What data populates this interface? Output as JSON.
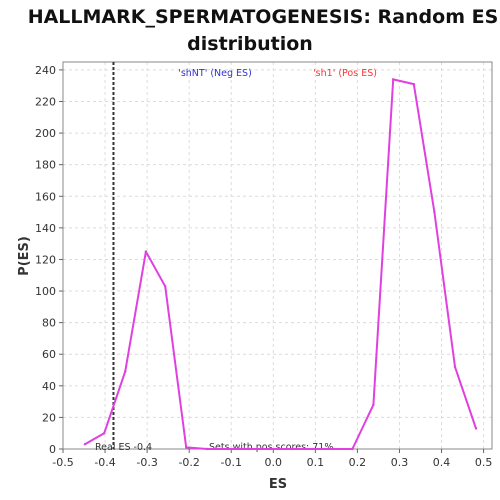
{
  "chart_data": {
    "type": "line",
    "title_lines": [
      "HALLMARK_SPERMATOGENESIS: Random ES",
      "distribution"
    ],
    "xlabel": "ES",
    "ylabel": "P(ES)",
    "xlim": [
      -0.5,
      0.52
    ],
    "ylim": [
      0,
      245
    ],
    "x_ticks": [
      "-0.5",
      "-0.4",
      "-0.3",
      "-0.2",
      "-0.1",
      "0.0",
      "0.1",
      "0.2",
      "0.3",
      "0.4",
      "0.5"
    ],
    "x_tick_values": [
      -0.5,
      -0.4,
      -0.3,
      -0.2,
      -0.1,
      0.0,
      0.1,
      0.2,
      0.3,
      0.4,
      0.5
    ],
    "y_ticks": [
      "0",
      "20",
      "40",
      "60",
      "80",
      "100",
      "120",
      "140",
      "160",
      "180",
      "200",
      "220",
      "240"
    ],
    "y_tick_values": [
      0,
      20,
      40,
      60,
      80,
      100,
      120,
      140,
      160,
      180,
      200,
      220,
      240
    ],
    "grid": true,
    "series": [
      {
        "color": "#e040e0",
        "x": [
          -0.448,
          -0.402,
          -0.352,
          -0.303,
          -0.257,
          -0.207,
          -0.157,
          -0.107,
          -0.057,
          -0.007,
          0.043,
          0.093,
          0.143,
          0.188,
          0.238,
          0.285,
          0.334,
          0.383,
          0.432,
          0.482
        ],
        "y": [
          3,
          10,
          49,
          125,
          103,
          1,
          0,
          0,
          0,
          0,
          0,
          0,
          0,
          0,
          28,
          234,
          231,
          150,
          52,
          13
        ]
      }
    ],
    "real_es": -0.38,
    "annotations": {
      "neg_label": "'shNT' (Neg ES)",
      "pos_label": "'sh1' (Pos ES)",
      "real_es_label": "Real ES -0.4",
      "pos_scores_label": "Sets with pos scores: 71%"
    },
    "colors": {
      "neg_label": "#3333cc",
      "pos_label": "#ff3333",
      "series": "#e040e0",
      "real_es_line": "#333333"
    }
  }
}
